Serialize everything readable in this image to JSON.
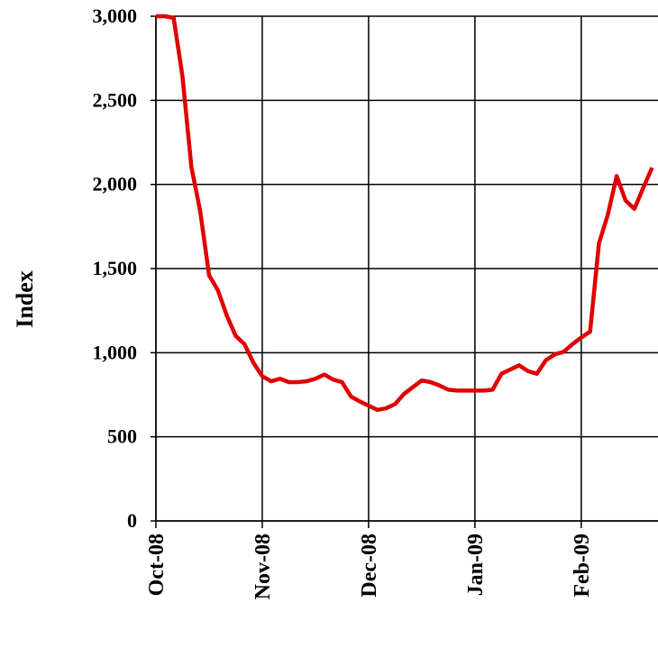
{
  "chart_data": {
    "type": "line",
    "ylabel": "Index",
    "categories": [
      "Oct-08",
      null,
      null,
      null,
      null,
      null,
      null,
      null,
      null,
      null,
      null,
      null,
      "Nov-08",
      null,
      null,
      null,
      null,
      null,
      null,
      null,
      null,
      null,
      null,
      null,
      "Dec-08",
      null,
      null,
      null,
      null,
      null,
      null,
      null,
      null,
      null,
      null,
      null,
      "Jan-09",
      null,
      null,
      null,
      null,
      null,
      null,
      null,
      null,
      null,
      null,
      null,
      "Feb-09",
      null,
      null,
      null,
      null,
      null,
      null,
      null,
      null
    ],
    "series": [
      {
        "name": "Index",
        "color": "#e00000",
        "values": [
          3000,
          3000,
          2990,
          2640,
          2105,
          1840,
          1460,
          1370,
          1220,
          1100,
          1050,
          940,
          860,
          830,
          845,
          825,
          825,
          830,
          845,
          870,
          840,
          825,
          740,
          710,
          685,
          660,
          670,
          695,
          755,
          795,
          835,
          825,
          805,
          780,
          775,
          775,
          775,
          775,
          780,
          875,
          900,
          925,
          890,
          875,
          955,
          990,
          1005,
          1050,
          1090,
          1125,
          1650,
          1820,
          2050,
          1905,
          1855,
          1980,
          2100
        ]
      }
    ],
    "ylim": [
      0,
      3000
    ],
    "yticks": [
      0,
      500,
      {
        "value": 1000,
        "label": "1,000"
      },
      {
        "value": 1500,
        "label": "1,500"
      },
      {
        "value": 2000,
        "label": "2,000"
      },
      {
        "value": 2500,
        "label": "2,500"
      },
      {
        "value": 3000,
        "label": "3,000"
      }
    ],
    "grid": true
  }
}
